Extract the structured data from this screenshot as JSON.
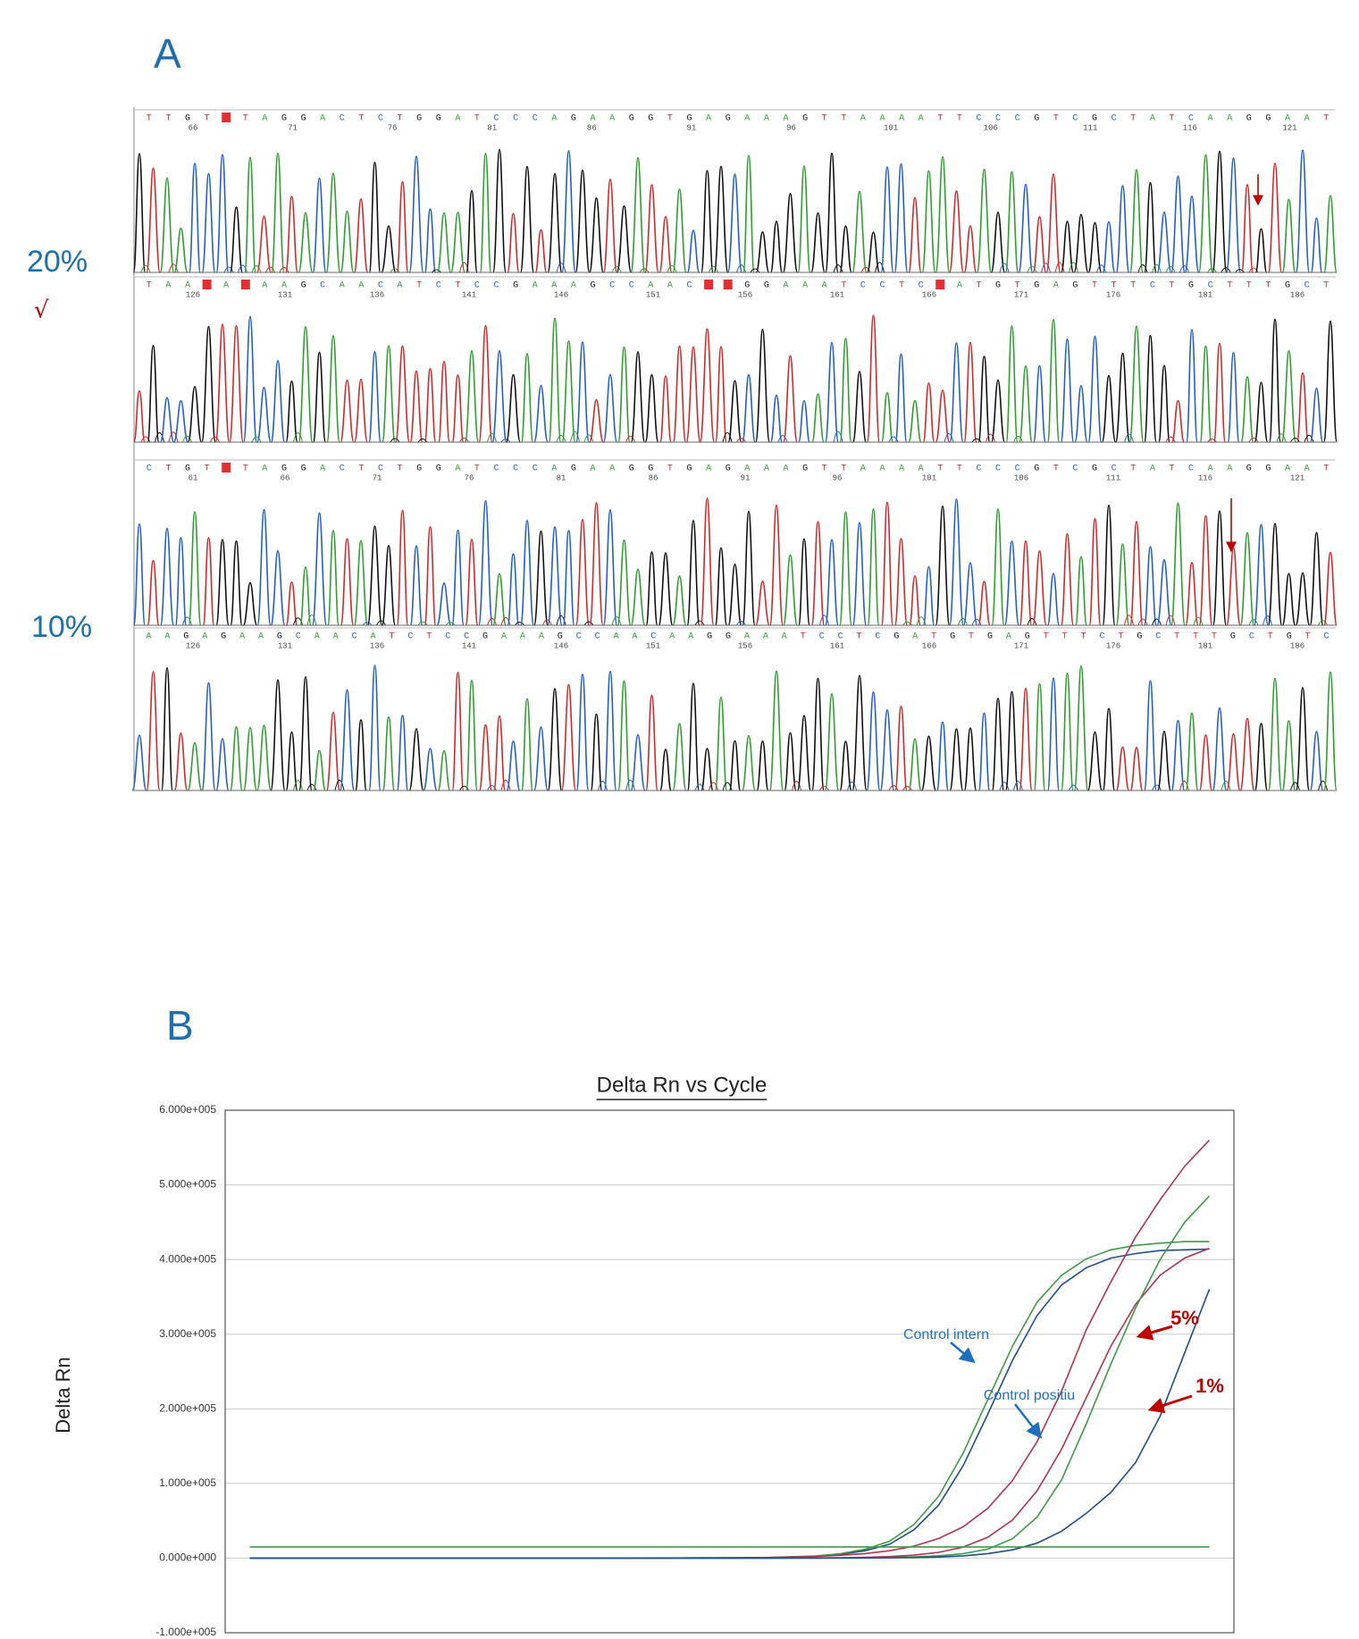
{
  "panel_a": {
    "label": "A",
    "rows": [
      {
        "label": "20%",
        "mark": "√",
        "strips": [
          {
            "bases": [
              "T",
              "T",
              "G",
              "T",
              null,
              "T",
              "A",
              "G",
              "G",
              "A",
              "C",
              "T",
              "C",
              "T",
              "G",
              "G",
              "A",
              "T",
              "C",
              "C",
              "C",
              "A",
              "G",
              "A",
              "A",
              "G",
              "G",
              "T",
              "G",
              "A",
              "G",
              "A",
              "A",
              "A",
              "G",
              "T",
              "T",
              "A",
              "A",
              "A",
              "A",
              "T",
              "T",
              "C",
              "C",
              "C",
              "G",
              "T",
              "C",
              "G",
              "C",
              "T",
              "A",
              "T",
              "C",
              "A",
              "A",
              "G",
              "G",
              "A",
              "A",
              "T"
            ],
            "positions": [
              66,
              71,
              76,
              81,
              86,
              91,
              96,
              101,
              106,
              111,
              116,
              121
            ]
          },
          {
            "bases": [
              "T",
              "A",
              "A",
              null,
              "A",
              null,
              "A",
              "A",
              "G",
              "C",
              "A",
              "A",
              "C",
              "A",
              "T",
              "C",
              "T",
              "C",
              "C",
              "G",
              "A",
              "A",
              "A",
              "G",
              "C",
              "C",
              "A",
              "A",
              "C",
              null,
              null,
              "G",
              "G",
              "A",
              "A",
              "A",
              "T",
              "C",
              "C",
              "T",
              "C",
              null,
              "A",
              "T",
              "G",
              "T",
              "G",
              "A",
              "G",
              "T",
              "T",
              "T",
              "C",
              "T",
              "G",
              "C",
              "T",
              "T",
              "T",
              "G",
              "C",
              "T"
            ],
            "positions": [
              126,
              131,
              136,
              141,
              146,
              151,
              156,
              161,
              166,
              171,
              176,
              181,
              186
            ]
          }
        ]
      },
      {
        "label": "10%",
        "strips": [
          {
            "bases": [
              "C",
              "T",
              "G",
              "T",
              null,
              "T",
              "A",
              "G",
              "G",
              "A",
              "C",
              "T",
              "C",
              "T",
              "G",
              "G",
              "A",
              "T",
              "C",
              "C",
              "C",
              "A",
              "G",
              "A",
              "A",
              "G",
              "G",
              "T",
              "G",
              "A",
              "G",
              "A",
              "A",
              "A",
              "G",
              "T",
              "T",
              "A",
              "A",
              "A",
              "A",
              "T",
              "T",
              "C",
              "C",
              "C",
              "G",
              "T",
              "C",
              "G",
              "C",
              "T",
              "A",
              "T",
              "C",
              "A",
              "A",
              "G",
              "G",
              "A",
              "A",
              "T"
            ],
            "positions": [
              61,
              66,
              71,
              76,
              81,
              86,
              91,
              96,
              101,
              106,
              111,
              116,
              121
            ]
          },
          {
            "bases": [
              "A",
              "A",
              "G",
              "A",
              "G",
              "A",
              "A",
              "G",
              "C",
              "A",
              "A",
              "C",
              "A",
              "T",
              "C",
              "T",
              "C",
              "C",
              "G",
              "A",
              "A",
              "A",
              "G",
              "C",
              "C",
              "A",
              "A",
              "C",
              "A",
              "A",
              "G",
              "G",
              "A",
              "A",
              "A",
              "T",
              "C",
              "C",
              "T",
              "C",
              "G",
              "A",
              "T",
              "G",
              "T",
              "G",
              "A",
              "G",
              "T",
              "T",
              "T",
              "C",
              "T",
              "G",
              "C",
              "T",
              "T",
              "T",
              "G",
              "C",
              "T",
              "G",
              "T",
              "C"
            ],
            "positions": [
              126,
              131,
              136,
              141,
              146,
              151,
              156,
              161,
              166,
              171,
              176,
              181,
              186
            ]
          }
        ]
      }
    ]
  },
  "panel_b": {
    "label": "B"
  },
  "chart_data": {
    "type": "line",
    "title": "Delta Rn vs Cycle",
    "y_label": "Delta Rn",
    "x": [
      1,
      5,
      10,
      15,
      20,
      22,
      24,
      25,
      26,
      27,
      28,
      29,
      30,
      31,
      32,
      33,
      34,
      35,
      36,
      37,
      38,
      39,
      40
    ],
    "xlim": [
      0,
      41
    ],
    "ylim": [
      -100000,
      600000
    ],
    "yticks": [
      {
        "value": -100000,
        "label": "-1.000e+005"
      },
      {
        "value": 0,
        "label": "0.000e+000"
      },
      {
        "value": 100000,
        "label": "1.000e+005"
      },
      {
        "value": 200000,
        "label": "2.000e+005"
      },
      {
        "value": 300000,
        "label": "3.000e+005"
      },
      {
        "value": 400000,
        "label": "4.000e+005"
      },
      {
        "value": 500000,
        "label": "5.000e+005"
      },
      {
        "value": 600000,
        "label": "6.000e+005"
      }
    ],
    "grid": true,
    "series": [
      {
        "color": "#1f4e8c",
        "values": [
          0,
          0,
          0,
          0,
          300,
          600,
          2400,
          4900,
          9900,
          18600,
          38000,
          71000,
          124000,
          193000,
          265000,
          325000,
          366000,
          389000,
          402000,
          408000,
          412000,
          413000,
          414000
        ]
      },
      {
        "color": "#3f9a47",
        "values": [
          0,
          0,
          0,
          0,
          400,
          700,
          2900,
          5900,
          11800,
          22500,
          45000,
          83000,
          141000,
          212500,
          284000,
          343000,
          379000,
          401000,
          413000,
          419000,
          422000,
          424000,
          424000
        ]
      },
      {
        "color": "#b0344f",
        "values": [
          0,
          0,
          0,
          0,
          300,
          800,
          2200,
          3700,
          6000,
          9800,
          16100,
          26200,
          42000,
          66700,
          104000,
          156000,
          224000,
          306000,
          370000,
          430000,
          480000,
          525000,
          560000
        ]
      },
      {
        "color": "#b0344f",
        "values": [
          0,
          0,
          0,
          0,
          0,
          100,
          300,
          500,
          1100,
          2100,
          4000,
          7700,
          14800,
          28000,
          51000,
          90000,
          146000,
          215000,
          284000,
          340000,
          379000,
          402000,
          415000
        ]
      },
      {
        "color": "#3f9a47",
        "values": [
          0,
          0,
          0,
          0,
          0,
          0,
          100,
          200,
          500,
          900,
          1600,
          3000,
          6000,
          12000,
          26000,
          55000,
          105000,
          180000,
          260000,
          335000,
          400000,
          450000,
          485000
        ]
      },
      {
        "color": "#1f4e8c",
        "values": [
          0,
          0,
          0,
          0,
          0,
          0,
          0,
          100,
          200,
          400,
          800,
          1500,
          3000,
          6000,
          11000,
          20000,
          36000,
          60000,
          88000,
          128000,
          190000,
          275000,
          360000
        ]
      },
      {
        "color": "#3f9a47",
        "values": [
          15000,
          15000,
          15000,
          15000,
          15000,
          15000,
          15000,
          15000,
          15000,
          15000,
          15000,
          15000,
          15000,
          15000,
          15000,
          15000,
          15000,
          15000,
          15000,
          15000,
          15000,
          15000,
          15000
        ]
      }
    ],
    "annotations": [
      {
        "text": "Control intern",
        "color": "#1f6fc0"
      },
      {
        "text": "Control positiu",
        "color": "#1f6fc0"
      },
      {
        "text": "5%",
        "color": "#c00000"
      },
      {
        "text": "1%",
        "color": "#c00000"
      }
    ]
  }
}
